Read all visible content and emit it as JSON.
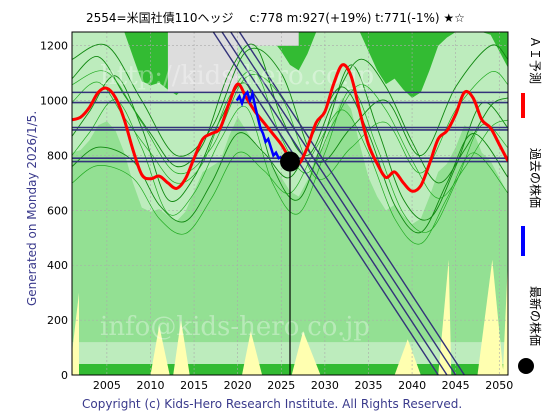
{
  "chart_data": {
    "type": "line",
    "title": "2554=米国社債110ヘッジ　 c:778  m:927(+19%)  t:771(-1%)  ★☆",
    "ylim": [
      0,
      1250
    ],
    "xlim": [
      2001,
      2051
    ],
    "x_ticks": [
      2005,
      2010,
      2015,
      2020,
      2025,
      2030,
      2035,
      2040,
      2045,
      2050
    ],
    "y_ticks": [
      0,
      200,
      400,
      600,
      800,
      1000,
      1200
    ],
    "grid": true,
    "horizontal_levels": [
      1030,
      993,
      902,
      893,
      790,
      778
    ],
    "series": [
      {
        "name": "ＡＩ予測",
        "color": "#ff0000",
        "x": [
          2001,
          2002,
          2003,
          2004,
          2005,
          2006,
          2007,
          2008,
          2009,
          2010,
          2011,
          2012,
          2013,
          2014,
          2015,
          2016,
          2017,
          2018,
          2019,
          2020,
          2021,
          2022,
          2023,
          2024,
          2025,
          2026,
          2027,
          2028,
          2029,
          2030,
          2031,
          2032,
          2033,
          2034,
          2035,
          2036,
          2037,
          2038,
          2039,
          2040,
          2041,
          2042,
          2043,
          2044,
          2045,
          2046,
          2047,
          2048,
          2049,
          2050,
          2051
        ],
        "values": [
          930,
          940,
          975,
          1030,
          1045,
          1010,
          930,
          820,
          730,
          715,
          725,
          700,
          680,
          715,
          790,
          860,
          880,
          900,
          990,
          1060,
          1010,
          960,
          920,
          880,
          840,
          790,
          770,
          830,
          920,
          960,
          1060,
          1130,
          1090,
          960,
          840,
          770,
          720,
          740,
          700,
          670,
          690,
          770,
          860,
          890,
          950,
          1030,
          1010,
          930,
          900,
          840,
          780
        ]
      },
      {
        "name": "過去の株価",
        "color": "#0000ff",
        "x": [
          2019.9,
          2020.2,
          2020.5,
          2020.8,
          2021.1,
          2021.4,
          2021.7,
          2022.0,
          2022.3,
          2022.6,
          2022.9,
          2023.2,
          2023.5,
          2023.8,
          2024.1,
          2024.4,
          2024.7,
          2025.0
        ],
        "values": [
          1000,
          1015,
          990,
          1020,
          1030,
          1000,
          1025,
          980,
          940,
          900,
          880,
          850,
          860,
          830,
          800,
          810,
          790,
          795
        ]
      },
      {
        "name": "最新の株価",
        "color": "#000000",
        "x": [
          2026.0
        ],
        "values": [
          778
        ]
      }
    ],
    "trend_lines": [
      {
        "x1": 2017,
        "y1": 1260,
        "x2": 2043,
        "y2": 0
      },
      {
        "x1": 2018,
        "y1": 1260,
        "x2": 2044,
        "y2": 0
      },
      {
        "x1": 2019,
        "y1": 1260,
        "x2": 2045,
        "y2": 0
      },
      {
        "x1": 2020,
        "y1": 1260,
        "x2": 2046,
        "y2": 0
      }
    ],
    "green_curves": [
      {
        "x": [
          2001,
          2004,
          2007,
          2010,
          2013,
          2016,
          2019,
          2022,
          2025,
          2028,
          2031,
          2034,
          2037,
          2040,
          2043,
          2046,
          2049,
          2051
        ],
        "values": [
          1080,
          1160,
          1020,
          880,
          760,
          840,
          1100,
          1200,
          940,
          800,
          1000,
          1150,
          1050,
          850,
          700,
          820,
          980,
          1010
        ]
      },
      {
        "x": [
          2001,
          2003,
          2006,
          2009,
          2012,
          2015,
          2018,
          2021,
          2024,
          2027,
          2030,
          2033,
          2036,
          2039,
          2042,
          2045,
          2048,
          2051
        ],
        "values": [
          870,
          960,
          1090,
          900,
          640,
          720,
          930,
          1060,
          760,
          640,
          880,
          1130,
          900,
          640,
          570,
          760,
          990,
          900
        ]
      },
      {
        "x": [
          2001,
          2004,
          2008,
          2011,
          2014,
          2017,
          2020,
          2023,
          2026,
          2029,
          2032,
          2035,
          2038,
          2041,
          2044,
          2047,
          2051
        ],
        "values": [
          760,
          830,
          780,
          620,
          560,
          700,
          880,
          810,
          720,
          900,
          1050,
          880,
          620,
          520,
          700,
          880,
          720
        ]
      },
      {
        "x": [
          2001,
          2005,
          2009,
          2013,
          2017,
          2021,
          2025,
          2029,
          2033,
          2037,
          2041,
          2045,
          2049,
          2051
        ],
        "values": [
          1150,
          1200,
          1000,
          800,
          900,
          1180,
          1100,
          780,
          900,
          1000,
          800,
          1050,
          1200,
          1150
        ]
      }
    ],
    "green_band_min": 40,
    "yellow_regions": [
      {
        "x": [
          2001,
          2001.8,
          2001.8,
          2001
        ],
        "values": [
          0,
          0,
          300,
          80
        ]
      },
      {
        "x": [
          2010,
          2012.2,
          2011
        ],
        "values": [
          0,
          0,
          180
        ]
      },
      {
        "x": [
          2012.6,
          2014.5,
          2013.5
        ],
        "values": [
          0,
          0,
          200
        ]
      },
      {
        "x": [
          2020.5,
          2022.8,
          2021.5
        ],
        "values": [
          0,
          0,
          160
        ]
      },
      {
        "x": [
          2026.2,
          2029.5,
          2027.5
        ],
        "values": [
          0,
          0,
          160
        ]
      },
      {
        "x": [
          2038.0,
          2041.0,
          2039.5
        ],
        "values": [
          0,
          0,
          130
        ]
      },
      {
        "x": [
          2043.0,
          2044.5,
          2044.2
        ],
        "values": [
          0,
          0,
          420
        ]
      },
      {
        "x": [
          2047.5,
          2050.5,
          2049.2
        ],
        "values": [
          0,
          0,
          420
        ]
      },
      {
        "x": [
          2050.4,
          2051,
          2051
        ],
        "values": [
          0,
          0,
          420
        ]
      }
    ],
    "gray_regions": [
      {
        "x": [
          2012,
          2020,
          2020,
          2012
        ],
        "values": [
          1030,
          1030,
          1250,
          1250
        ]
      },
      {
        "x": [
          2020,
          2027,
          2027,
          2020
        ],
        "values": [
          1200,
          1200,
          1250,
          1250
        ]
      }
    ]
  },
  "watermark_lines": [
    "http://kids-hero.co.jp",
    "info@kids-hero.co.jp"
  ],
  "side_text": "Generated on Monday 2026/1/5.",
  "legend": {
    "ai_label": "ＡＩ予測",
    "past_label": "過去の株価",
    "latest_label": "最新の株価"
  },
  "copyright": "Copyright (c) Kids-Hero Research Institute. All Rights Reserved.",
  "colors": {
    "plot_bg": "#33bb33",
    "band_light": "#ccf2cc",
    "band_mid": "#88dd88",
    "yellow": "#ffffb0",
    "gray": "#dddddd",
    "level_line": "#33337a",
    "trend_line": "#33337a",
    "grid": "#aaaaaa"
  }
}
